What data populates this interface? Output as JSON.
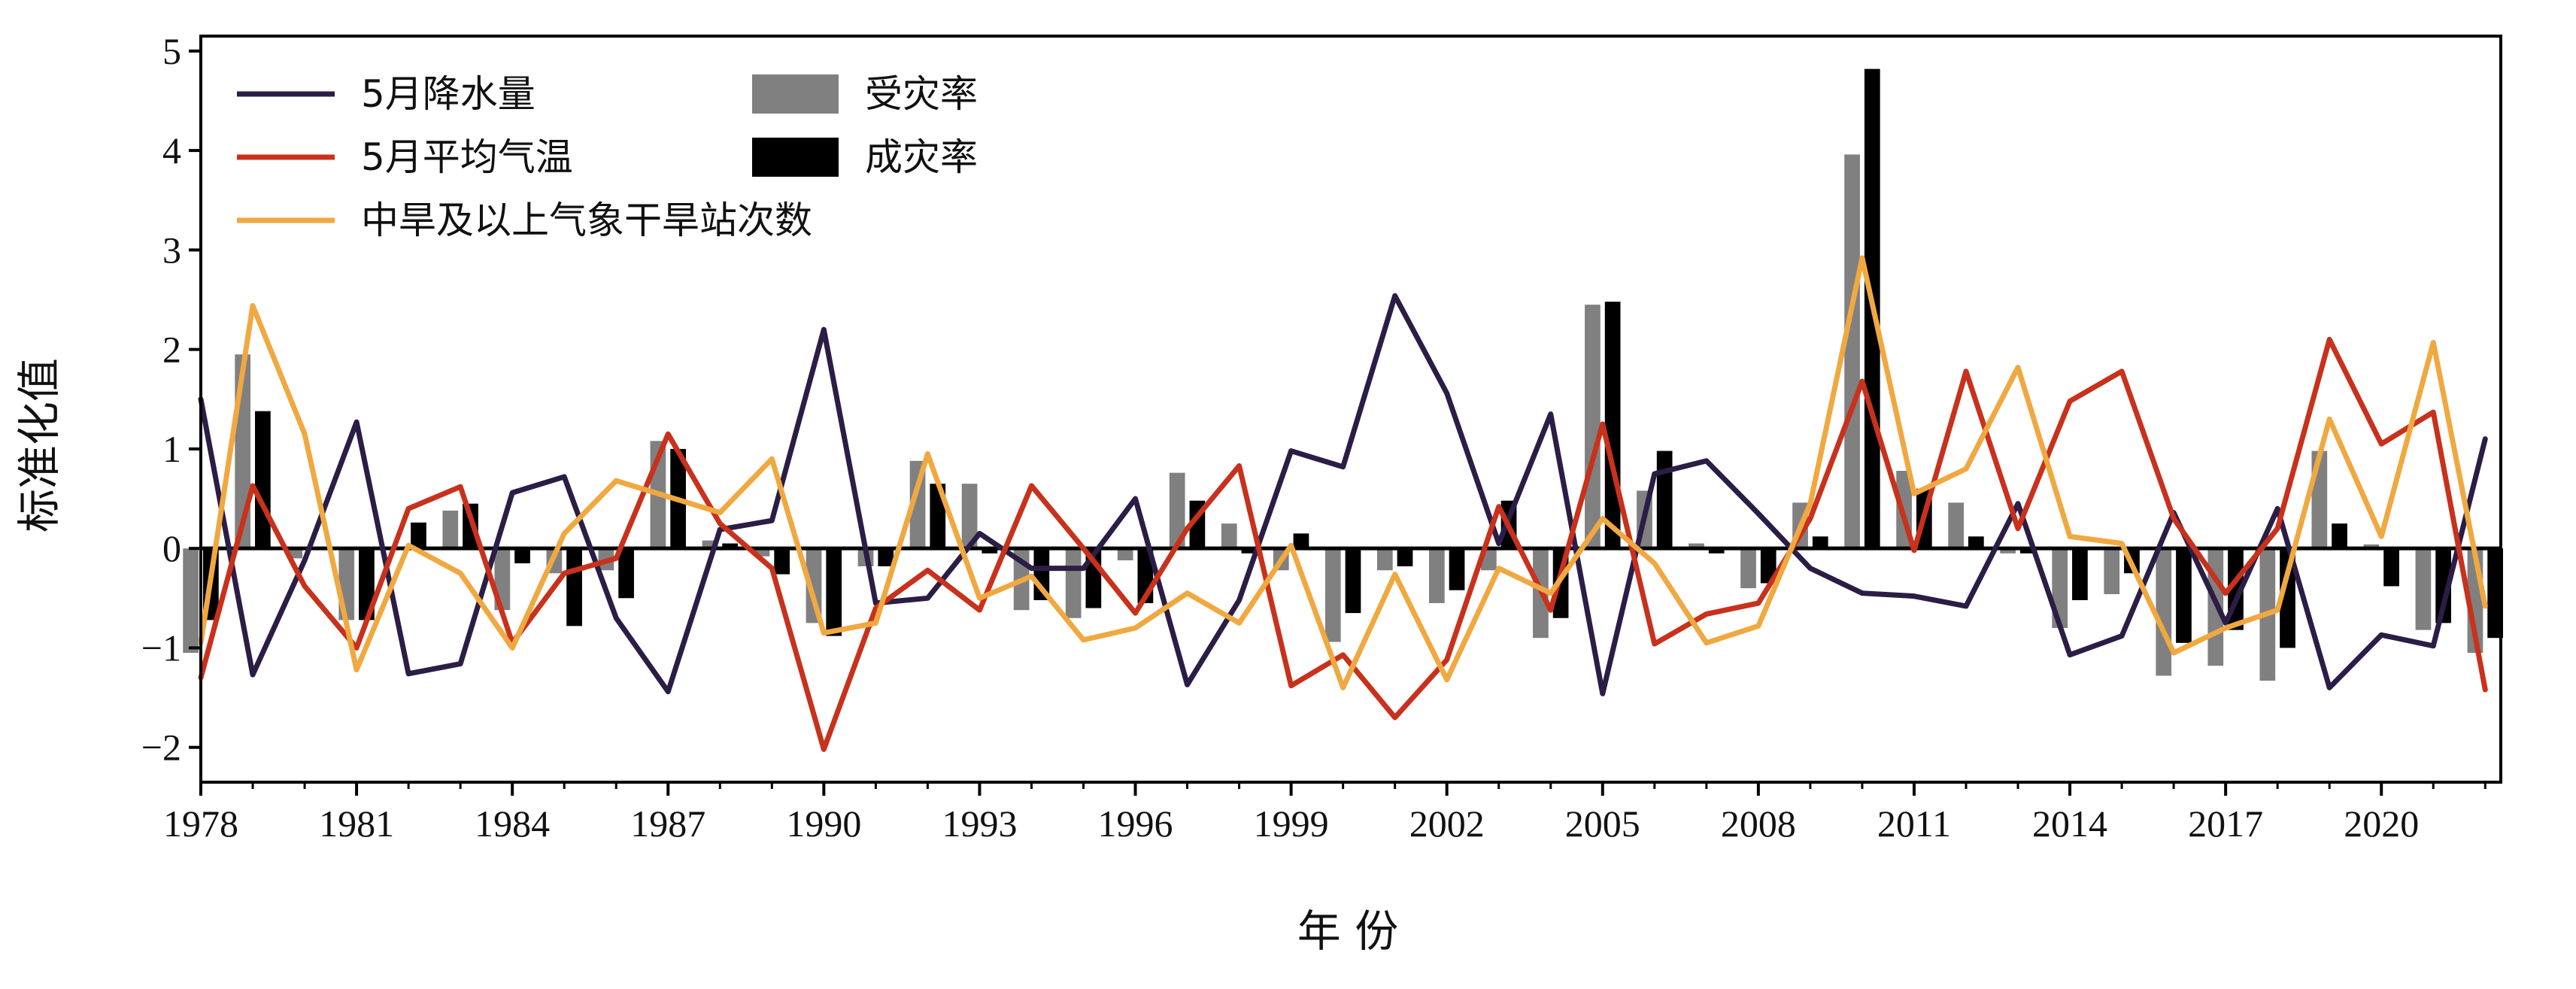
{
  "chart_data": {
    "type": "line",
    "xlabel": "年 份",
    "ylabel": "标准化值",
    "ylim": [
      -2.35,
      5.15
    ],
    "yticks": [
      -2,
      -1,
      0,
      1,
      2,
      3,
      4,
      5
    ],
    "ytick_labels": [
      "−2",
      "−1",
      "0",
      "1",
      "2",
      "3",
      "4",
      "5"
    ],
    "xlim": [
      1978,
      2022.3
    ],
    "xticks": [
      1978,
      1981,
      1984,
      1987,
      1990,
      1993,
      1996,
      1999,
      2002,
      2005,
      2008,
      2011,
      2014,
      2017,
      2020
    ],
    "xtick_labels": [
      "1978",
      "1981",
      "1984",
      "1987",
      "1990",
      "1993",
      "1996",
      "1999",
      "2002",
      "2005",
      "2008",
      "2011",
      "2014",
      "2017",
      "2020"
    ],
    "legend_position": "top-left",
    "years": [
      1978,
      1979,
      1980,
      1981,
      1982,
      1983,
      1984,
      1985,
      1986,
      1987,
      1988,
      1989,
      1990,
      1991,
      1992,
      1993,
      1994,
      1995,
      1996,
      1997,
      1998,
      1999,
      2000,
      2001,
      2002,
      2003,
      2004,
      2005,
      2006,
      2007,
      2008,
      2009,
      2010,
      2011,
      2012,
      2013,
      2014,
      2015,
      2016,
      2017,
      2018,
      2019,
      2020,
      2021,
      2022
    ],
    "bar_series": [
      {
        "name": "受灾率",
        "color": "#808080",
        "values": [
          -1.05,
          1.95,
          -0.1,
          -0.72,
          0.02,
          0.38,
          -0.62,
          -0.25,
          -0.22,
          1.08,
          0.08,
          -0.08,
          -0.75,
          -0.18,
          0.88,
          0.65,
          -0.62,
          -0.7,
          -0.12,
          0.76,
          0.25,
          -0.22,
          -0.94,
          -0.22,
          -0.55,
          -0.22,
          -0.9,
          2.45,
          0.58,
          0.05,
          -0.4,
          0.46,
          3.96,
          0.78,
          0.46,
          -0.05,
          -0.8,
          -0.46,
          -1.28,
          -1.18,
          -1.33,
          0.98,
          0.04,
          -0.82,
          -1.05
        ]
      },
      {
        "name": "成灾率",
        "color": "#000000",
        "values": [
          -0.72,
          1.38,
          0.0,
          -0.72,
          0.26,
          0.45,
          -0.15,
          -0.78,
          -0.5,
          1.0,
          0.05,
          -0.26,
          -0.88,
          -0.18,
          0.65,
          -0.05,
          -0.52,
          -0.6,
          -0.55,
          0.48,
          -0.05,
          0.15,
          -0.65,
          -0.18,
          -0.42,
          0.48,
          -0.7,
          2.48,
          0.98,
          -0.05,
          -0.35,
          0.12,
          4.82,
          0.6,
          0.12,
          -0.05,
          -0.52,
          -0.25,
          -0.95,
          -0.82,
          -1.0,
          0.25,
          -0.38,
          -0.75,
          -0.9
        ]
      }
    ],
    "line_series": [
      {
        "name": "5月降水量",
        "color": "#2b1d45",
        "values": [
          1.5,
          -1.27,
          -0.12,
          1.27,
          -1.26,
          -1.16,
          0.56,
          0.72,
          -0.7,
          -1.44,
          0.19,
          0.28,
          2.2,
          -0.55,
          -0.5,
          0.15,
          -0.2,
          -0.2,
          0.5,
          -1.37,
          -0.52,
          0.98,
          0.82,
          2.54,
          1.56,
          0.05,
          1.35,
          -1.46,
          0.75,
          0.88,
          0.35,
          -0.2,
          -0.45,
          -0.48,
          -0.58,
          0.45,
          -1.07,
          -0.88,
          0.36,
          -0.75,
          0.4,
          -1.4,
          -0.87,
          -0.98,
          1.1
        ]
      },
      {
        "name": "5月平均气温",
        "color": "#c8311c",
        "values": [
          -1.3,
          0.63,
          -0.38,
          -1.0,
          0.4,
          0.62,
          -0.95,
          -0.25,
          -0.1,
          1.15,
          0.25,
          -0.2,
          -2.02,
          -0.6,
          -0.22,
          -0.62,
          0.63,
          0.0,
          -0.65,
          0.2,
          0.83,
          -1.38,
          -1.07,
          -1.7,
          -1.12,
          0.42,
          -0.62,
          1.25,
          -0.96,
          -0.66,
          -0.55,
          0.3,
          1.68,
          -0.02,
          1.78,
          0.2,
          1.48,
          1.78,
          0.3,
          -0.45,
          0.2,
          2.1,
          1.05,
          1.37,
          -1.42
        ]
      },
      {
        "name": "中旱及以上气象干旱站次数",
        "color": "#f0a840",
        "values": [
          -0.95,
          2.44,
          1.15,
          -1.22,
          0.03,
          -0.25,
          -1.0,
          0.15,
          0.68,
          0.52,
          0.36,
          0.9,
          -0.85,
          -0.75,
          0.95,
          -0.5,
          -0.28,
          -0.92,
          -0.8,
          -0.45,
          -0.75,
          0.03,
          -1.4,
          -0.26,
          -1.32,
          -0.2,
          -0.45,
          0.3,
          -0.15,
          -0.95,
          -0.78,
          0.45,
          2.92,
          0.55,
          0.8,
          1.82,
          0.12,
          0.05,
          -1.05,
          -0.8,
          -0.62,
          1.3,
          0.12,
          2.07,
          -0.58
        ]
      }
    ]
  }
}
